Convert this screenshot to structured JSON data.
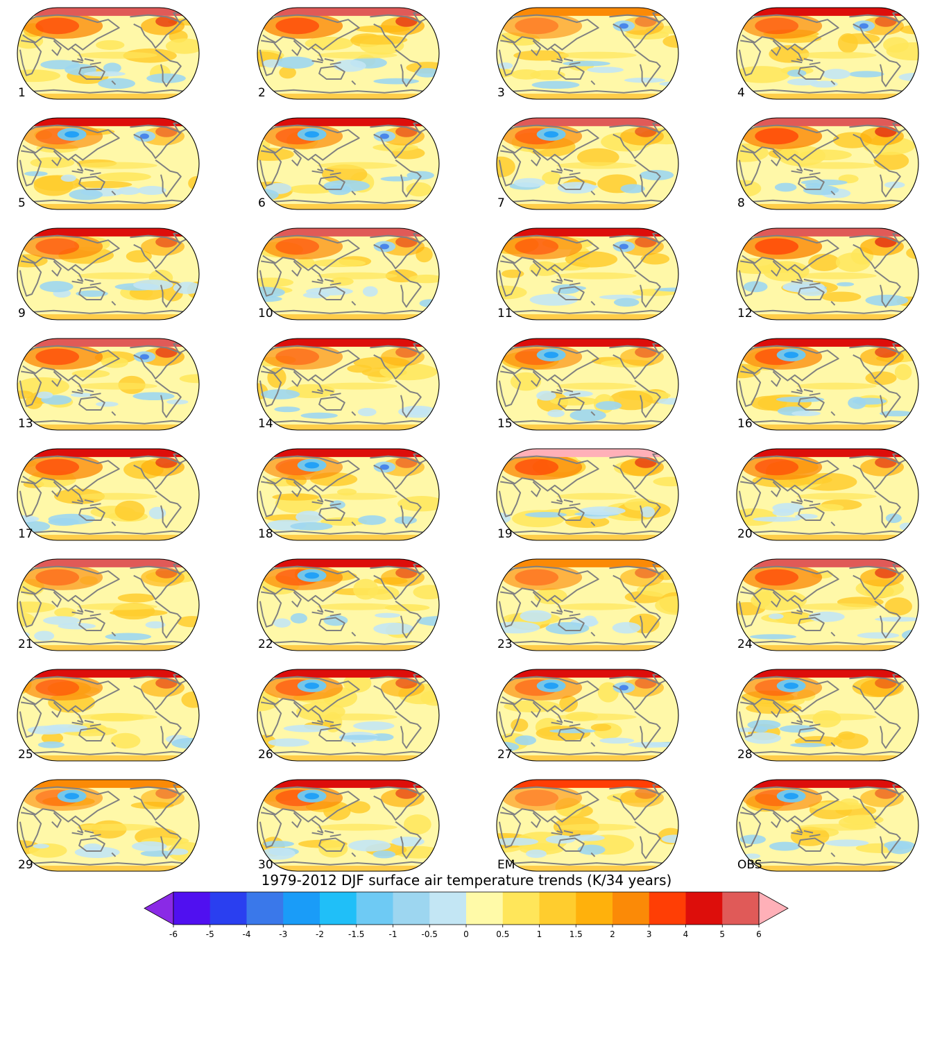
{
  "figure": {
    "colorbar_title": "1979-2012 DJF surface air temperature trends (K/34 years)",
    "colorbar": {
      "levels": [
        "-6",
        "-5",
        "-4",
        "-3",
        "-2",
        "-1.5",
        "-1",
        "-0.5",
        "0",
        "0.5",
        "1",
        "1.5",
        "2",
        "3",
        "4",
        "5",
        "6"
      ],
      "colors": [
        "#5010f0",
        "#2a3ff0",
        "#3a78ea",
        "#1a9cf8",
        "#20bff8",
        "#6ecaf4",
        "#9dd6f0",
        "#c3e6f4",
        "#fffaa8",
        "#ffe65a",
        "#ffcd2e",
        "#ffb10c",
        "#fb8a07",
        "#ff3e05",
        "#dd0e0b",
        "#e05a58"
      ],
      "under_color": "#8a2ae6",
      "over_color": "#ffb0b8",
      "extend": "both"
    },
    "panels": [
      {
        "label": "1",
        "arctic": "#e05a58",
        "n_amp": 0.85,
        "cold_eurasia": false,
        "cold_namerica": false
      },
      {
        "label": "2",
        "arctic": "#e05a58",
        "n_amp": 0.9,
        "cold_eurasia": false,
        "cold_namerica": false
      },
      {
        "label": "3",
        "arctic": "#fb8a07",
        "n_amp": 0.5,
        "cold_eurasia": false,
        "cold_namerica": true
      },
      {
        "label": "4",
        "arctic": "#dd0e0b",
        "n_amp": 0.7,
        "cold_eurasia": false,
        "cold_namerica": true
      },
      {
        "label": "5",
        "arctic": "#dd0e0b",
        "n_amp": 0.6,
        "cold_eurasia": true,
        "cold_namerica": true
      },
      {
        "label": "6",
        "arctic": "#dd0e0b",
        "n_amp": 0.7,
        "cold_eurasia": true,
        "cold_namerica": true
      },
      {
        "label": "7",
        "arctic": "#e05a58",
        "n_amp": 0.7,
        "cold_eurasia": true,
        "cold_namerica": false
      },
      {
        "label": "8",
        "arctic": "#e05a58",
        "n_amp": 0.95,
        "cold_eurasia": false,
        "cold_namerica": false
      },
      {
        "label": "9",
        "arctic": "#dd0e0b",
        "n_amp": 0.7,
        "cold_eurasia": false,
        "cold_namerica": false
      },
      {
        "label": "10",
        "arctic": "#e05a58",
        "n_amp": 0.7,
        "cold_eurasia": false,
        "cold_namerica": true
      },
      {
        "label": "11",
        "arctic": "#dd0e0b",
        "n_amp": 0.7,
        "cold_eurasia": false,
        "cold_namerica": true
      },
      {
        "label": "12",
        "arctic": "#e05a58",
        "n_amp": 0.95,
        "cold_eurasia": false,
        "cold_namerica": false
      },
      {
        "label": "13",
        "arctic": "#e05a58",
        "n_amp": 0.85,
        "cold_eurasia": false,
        "cold_namerica": true
      },
      {
        "label": "14",
        "arctic": "#dd0e0b",
        "n_amp": 0.6,
        "cold_eurasia": false,
        "cold_namerica": false
      },
      {
        "label": "15",
        "arctic": "#dd0e0b",
        "n_amp": 0.6,
        "cold_eurasia": true,
        "cold_namerica": false
      },
      {
        "label": "16",
        "arctic": "#dd0e0b",
        "n_amp": 0.8,
        "cold_eurasia": true,
        "cold_namerica": false
      },
      {
        "label": "17",
        "arctic": "#dd0e0b",
        "n_amp": 0.85,
        "cold_eurasia": false,
        "cold_namerica": false
      },
      {
        "label": "18",
        "arctic": "#dd0e0b",
        "n_amp": 0.6,
        "cold_eurasia": true,
        "cold_namerica": true
      },
      {
        "label": "19",
        "arctic": "#ffb0b8",
        "n_amp": 0.85,
        "cold_eurasia": false,
        "cold_namerica": false
      },
      {
        "label": "20",
        "arctic": "#dd0e0b",
        "n_amp": 0.8,
        "cold_eurasia": false,
        "cold_namerica": false
      },
      {
        "label": "21",
        "arctic": "#e05a58",
        "n_amp": 0.6,
        "cold_eurasia": false,
        "cold_namerica": false
      },
      {
        "label": "22",
        "arctic": "#dd0e0b",
        "n_amp": 0.7,
        "cold_eurasia": true,
        "cold_namerica": false
      },
      {
        "label": "23",
        "arctic": "#fb8a07",
        "n_amp": 0.55,
        "cold_eurasia": false,
        "cold_namerica": false
      },
      {
        "label": "24",
        "arctic": "#e05a58",
        "n_amp": 0.85,
        "cold_eurasia": false,
        "cold_namerica": false
      },
      {
        "label": "25",
        "arctic": "#dd0e0b",
        "n_amp": 0.7,
        "cold_eurasia": false,
        "cold_namerica": false
      },
      {
        "label": "26",
        "arctic": "#dd0e0b",
        "n_amp": 0.7,
        "cold_eurasia": true,
        "cold_namerica": false
      },
      {
        "label": "27",
        "arctic": "#dd0e0b",
        "n_amp": 0.6,
        "cold_eurasia": true,
        "cold_namerica": true
      },
      {
        "label": "28",
        "arctic": "#dd0e0b",
        "n_amp": 0.6,
        "cold_eurasia": true,
        "cold_namerica": false
      },
      {
        "label": "29",
        "arctic": "#fb8a07",
        "n_amp": 0.5,
        "cold_eurasia": true,
        "cold_namerica": false
      },
      {
        "label": "30",
        "arctic": "#dd0e0b",
        "n_amp": 0.75,
        "cold_eurasia": true,
        "cold_namerica": false
      },
      {
        "label": "EM",
        "arctic": "#ff3e05",
        "n_amp": 0.45,
        "cold_eurasia": false,
        "cold_namerica": false
      },
      {
        "label": "OBS",
        "arctic": "#dd0e0b",
        "n_amp": 0.6,
        "cold_eurasia": true,
        "cold_namerica": false
      }
    ]
  }
}
